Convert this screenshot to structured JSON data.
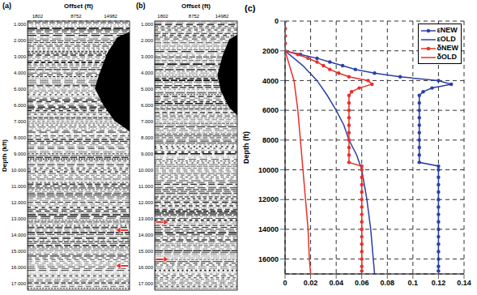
{
  "gathers": [
    {
      "panel": "(a)",
      "title": "Offset (ft)",
      "ylabel": "Depth (kft)",
      "xlim": [
        0,
        18400
      ],
      "xticks": [
        1802,
        8752,
        14982
      ],
      "ylim": [
        0.8,
        17.4
      ],
      "yticks": [
        {
          "value": 1,
          "label": "1.000"
        },
        {
          "value": 2,
          "label": "2.000"
        },
        {
          "value": 3,
          "label": "3.000"
        },
        {
          "value": 4,
          "label": "4.000"
        },
        {
          "value": 5,
          "label": "5.000"
        },
        {
          "value": 6,
          "label": "6.000"
        },
        {
          "value": 7,
          "label": "7.000"
        },
        {
          "value": 8,
          "label": "8.000"
        },
        {
          "value": 9,
          "label": "9.000"
        },
        {
          "value": 10,
          "label": "10.000"
        },
        {
          "value": 11,
          "label": "11.000"
        },
        {
          "value": 12,
          "label": "12.000"
        },
        {
          "value": 13,
          "label": "13.000"
        },
        {
          "value": 14,
          "label": "14.000"
        },
        {
          "value": 15,
          "label": "15.000"
        },
        {
          "value": 16,
          "label": "16.000"
        },
        {
          "value": 17,
          "label": "17.000"
        }
      ],
      "arrows": [
        13.7,
        15.9
      ]
    },
    {
      "panel": "(b)",
      "title": "Offset (ft)",
      "xlim": [
        0,
        18400
      ],
      "xticks": [
        1802,
        8752,
        14982
      ],
      "ylim": [
        0.8,
        17.4
      ],
      "yticks": [
        {
          "value": 1,
          "label": "1.000"
        },
        {
          "value": 2,
          "label": "2.000"
        },
        {
          "value": 3,
          "label": "3.000"
        },
        {
          "value": 4,
          "label": "4.000"
        },
        {
          "value": 5,
          "label": "5.000"
        },
        {
          "value": 6,
          "label": "6.000"
        },
        {
          "value": 7,
          "label": "7.000"
        },
        {
          "value": 8,
          "label": "8.000"
        },
        {
          "value": 9,
          "label": "9.000"
        },
        {
          "value": 10,
          "label": "10.000"
        },
        {
          "value": 11,
          "label": "11.000"
        },
        {
          "value": 12,
          "label": "12.000"
        },
        {
          "value": 13,
          "label": "13.000"
        },
        {
          "value": 14,
          "label": "14.000"
        },
        {
          "value": 15,
          "label": "15.000"
        },
        {
          "value": 16,
          "label": "16.000"
        },
        {
          "value": 17,
          "label": "17.000"
        }
      ],
      "arrows": [
        13.2,
        15.5
      ]
    }
  ],
  "chart_data": {
    "panel": "(c)",
    "type": "line",
    "ylabel": "Depth (ft)",
    "xlim": [
      0,
      0.14
    ],
    "xticks": [
      0,
      0.02,
      0.04,
      0.06,
      0.08,
      0.1,
      0.12,
      0.14
    ],
    "ylim": [
      0,
      17000
    ],
    "yticks": [
      0,
      2000,
      4000,
      6000,
      8000,
      10000,
      12000,
      14000,
      16000
    ],
    "grid": true,
    "legend": "upper right",
    "series": [
      {
        "name": "εNEW",
        "color": "#2c3fa6",
        "marker": "circle",
        "y": [
          0,
          500,
          1000,
          1500,
          2000,
          2250,
          2500,
          2750,
          3000,
          3250,
          3500,
          3750,
          4000,
          4250,
          4500,
          4750,
          5000,
          5500,
          6000,
          6500,
          7000,
          7500,
          8000,
          8500,
          9000,
          9500,
          9750,
          10000,
          10500,
          11000,
          11500,
          12000,
          12500,
          13000,
          13500,
          14000,
          14500,
          15000,
          15500,
          16000,
          16500,
          16800
        ],
        "x": [
          0,
          0,
          0,
          0,
          0,
          0.012,
          0.025,
          0.035,
          0.045,
          0.055,
          0.07,
          0.09,
          0.12,
          0.13,
          0.115,
          0.108,
          0.105,
          0.105,
          0.105,
          0.105,
          0.105,
          0.105,
          0.105,
          0.105,
          0.105,
          0.105,
          0.12,
          0.12,
          0.12,
          0.12,
          0.12,
          0.12,
          0.12,
          0.12,
          0.12,
          0.12,
          0.12,
          0.12,
          0.12,
          0.12,
          0.12,
          0.12
        ]
      },
      {
        "name": "εOLD",
        "color": "#2c3fa6",
        "marker": "none",
        "y": [
          0,
          1000,
          2000,
          3000,
          4000,
          5000,
          6000,
          7000,
          8000,
          9000,
          10000,
          12000,
          14000,
          16000,
          17000
        ],
        "x": [
          0,
          0,
          0,
          0.014,
          0.025,
          0.033,
          0.04,
          0.046,
          0.05,
          0.056,
          0.06,
          0.064,
          0.067,
          0.069,
          0.07
        ]
      },
      {
        "name": "δNEW",
        "color": "#e8302a",
        "marker": "circle",
        "y": [
          0,
          500,
          1000,
          1500,
          2000,
          2250,
          2500,
          2750,
          3000,
          3250,
          3500,
          3750,
          4000,
          4250,
          4500,
          4750,
          5000,
          5500,
          6000,
          6500,
          7000,
          7500,
          8000,
          8500,
          9000,
          9500,
          9750,
          10000,
          10500,
          11000,
          11500,
          12000,
          12500,
          13000,
          13500,
          14000,
          14500,
          15000,
          15500,
          16000,
          16500,
          16800
        ],
        "x": [
          0,
          0,
          0,
          0,
          0,
          0.01,
          0.018,
          0.025,
          0.03,
          0.035,
          0.042,
          0.05,
          0.065,
          0.068,
          0.058,
          0.052,
          0.05,
          0.05,
          0.05,
          0.05,
          0.05,
          0.05,
          0.05,
          0.05,
          0.05,
          0.05,
          0.06,
          0.06,
          0.06,
          0.06,
          0.06,
          0.06,
          0.06,
          0.06,
          0.06,
          0.06,
          0.06,
          0.06,
          0.06,
          0.06,
          0.06,
          0.06
        ]
      },
      {
        "name": "δOLD",
        "color": "#e8302a",
        "marker": "none",
        "y": [
          0,
          1000,
          2000,
          4000,
          6000,
          8000,
          10000,
          12000,
          14000,
          16000,
          17000
        ],
        "x": [
          0,
          0,
          0,
          0.007,
          0.01,
          0.012,
          0.014,
          0.016,
          0.018,
          0.019,
          0.02
        ]
      }
    ]
  }
}
